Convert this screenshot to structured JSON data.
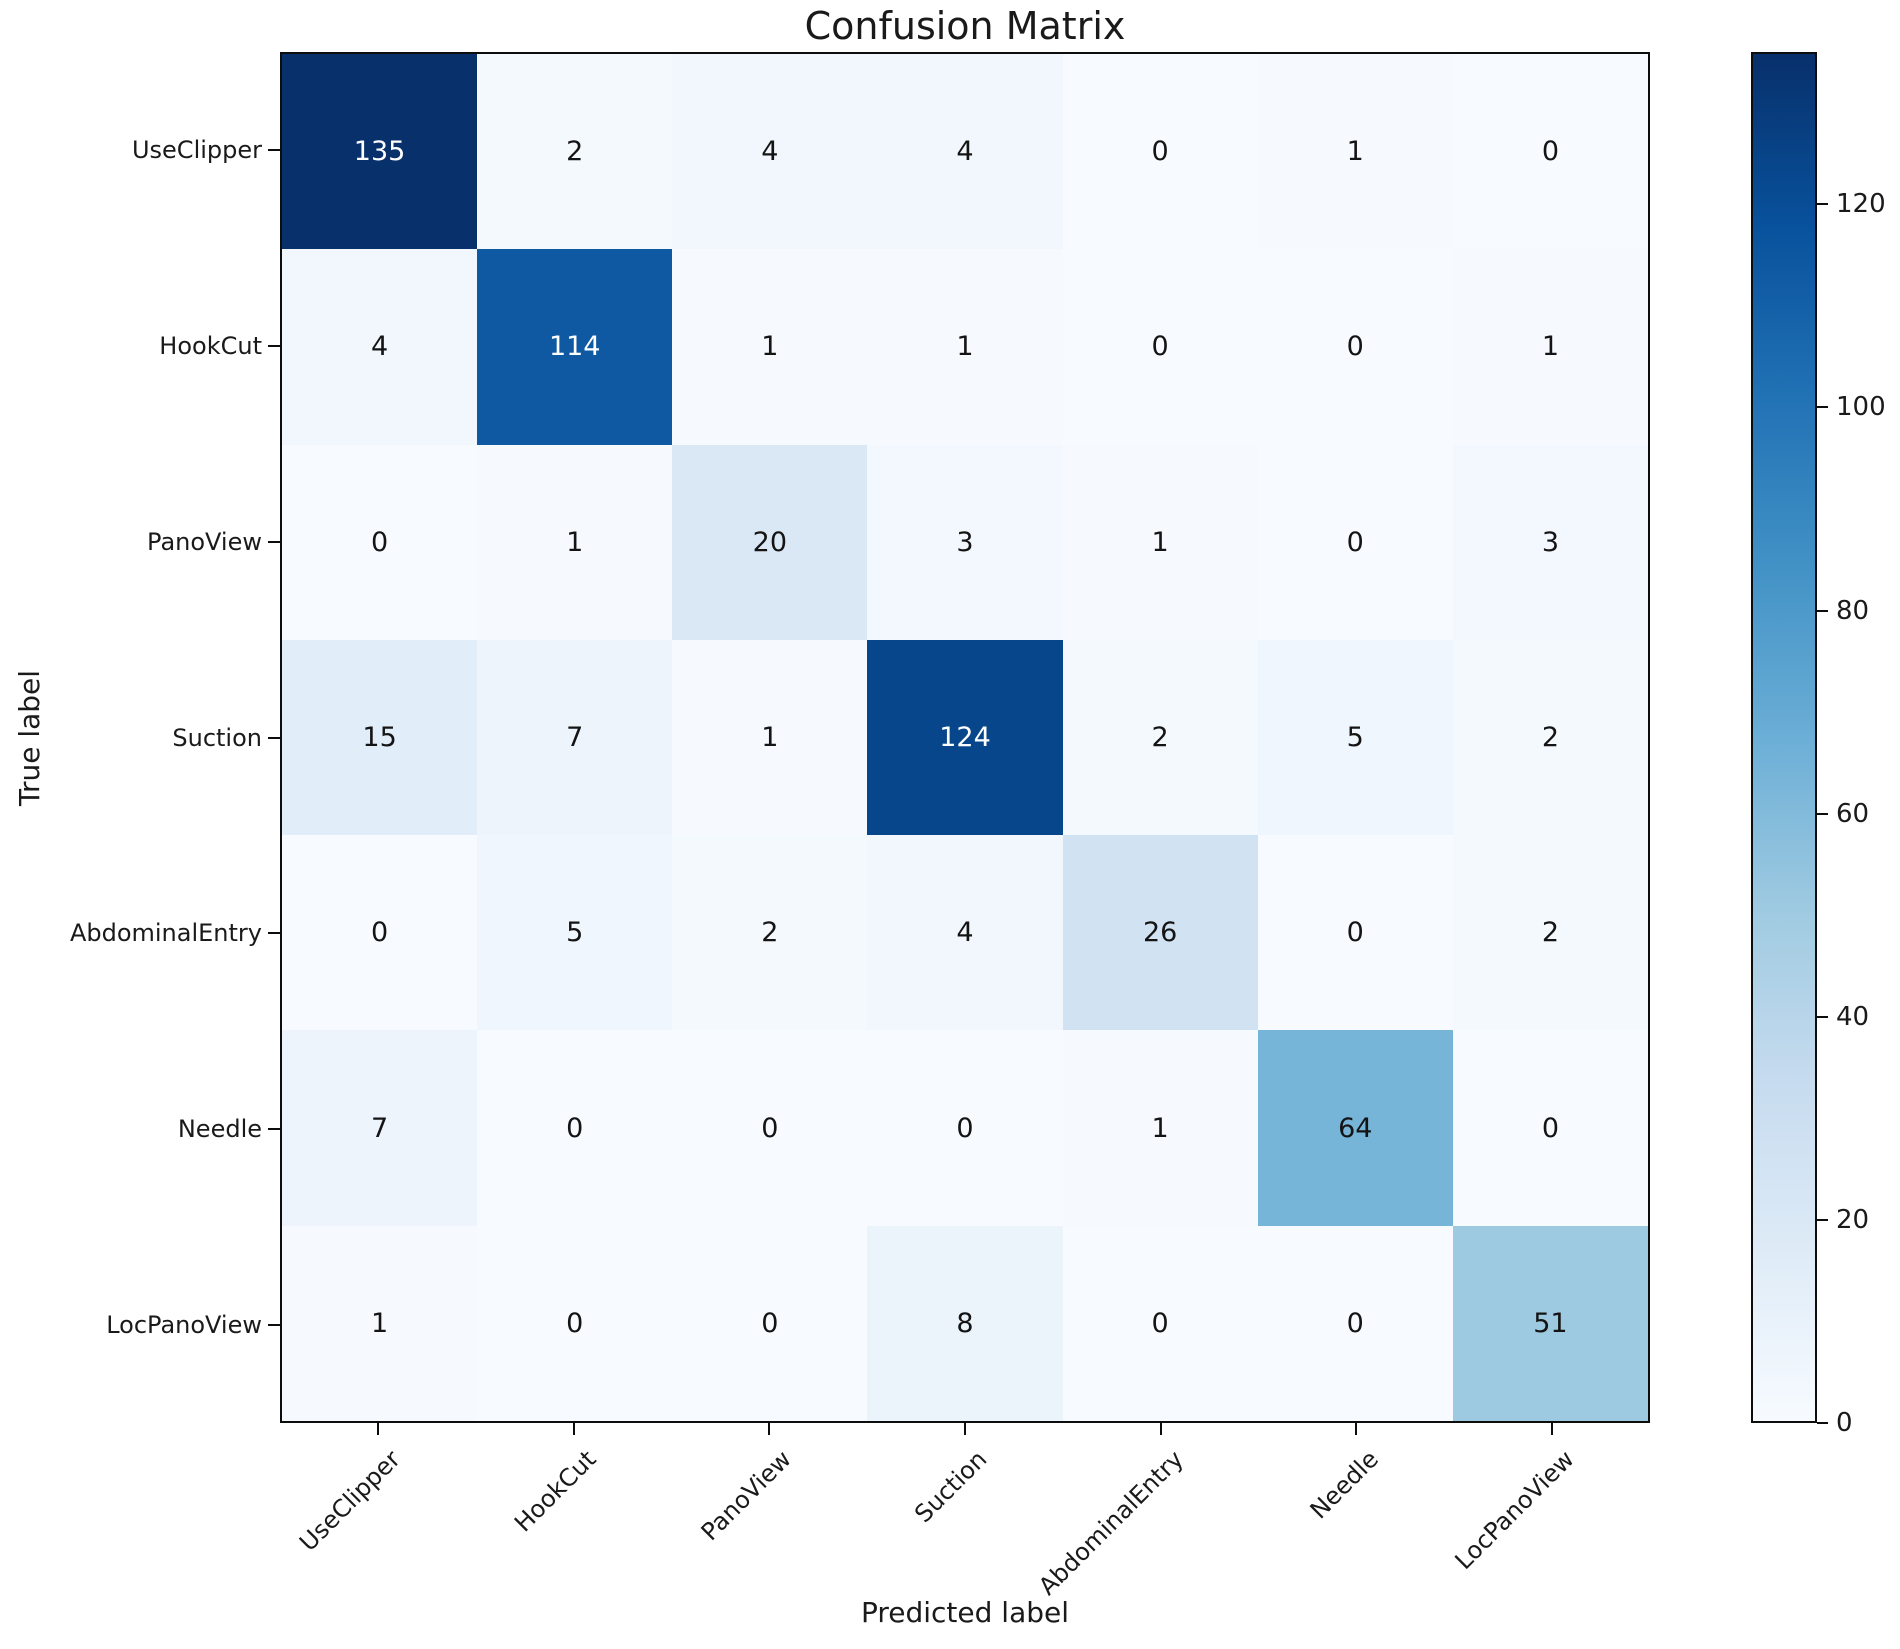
{
  "title": "Confusion Matrix",
  "chart_data": {
    "type": "heatmap",
    "title": "Confusion Matrix",
    "xlabel": "Predicted label",
    "ylabel": "True label",
    "categories": [
      "UseClipper",
      "HookCut",
      "PanoView",
      "Suction",
      "AbdominalEntry",
      "Needle",
      "LocPanoView"
    ],
    "x_tick_labels": [
      "UseClipper",
      "HookCut",
      "PanoView",
      "Suction",
      "AbdominalEntry",
      "Needle",
      "LocPanoView"
    ],
    "y_tick_labels": [
      "UseClipper",
      "HookCut",
      "PanoView",
      "Suction",
      "AbdominalEntry",
      "Needle",
      "LocPanoView"
    ],
    "matrix": [
      [
        135,
        2,
        4,
        4,
        0,
        1,
        0
      ],
      [
        4,
        114,
        1,
        1,
        0,
        0,
        1
      ],
      [
        0,
        1,
        20,
        3,
        1,
        0,
        3
      ],
      [
        15,
        7,
        1,
        124,
        2,
        5,
        2
      ],
      [
        0,
        5,
        2,
        4,
        26,
        0,
        2
      ],
      [
        7,
        0,
        0,
        0,
        1,
        64,
        0
      ],
      [
        1,
        0,
        0,
        8,
        0,
        0,
        51
      ]
    ],
    "vmin": 0,
    "vmax": 135,
    "colormap": "Blues",
    "colorbar_ticks": [
      0,
      20,
      40,
      60,
      80,
      100,
      120
    ],
    "colorbar_position": "right",
    "grid": false,
    "x_tick_rotation_deg": 45
  },
  "colors": {
    "cmap_stops": [
      "#f7fbff",
      "#deebf7",
      "#c6dbef",
      "#9ecae1",
      "#6baed6",
      "#4292c6",
      "#2171b5",
      "#08519c",
      "#08306b"
    ],
    "annotation_dark_text": "#141414",
    "annotation_light_text": "#ffffff",
    "axis_border": "#0d0d0d",
    "background": "#ffffff"
  }
}
